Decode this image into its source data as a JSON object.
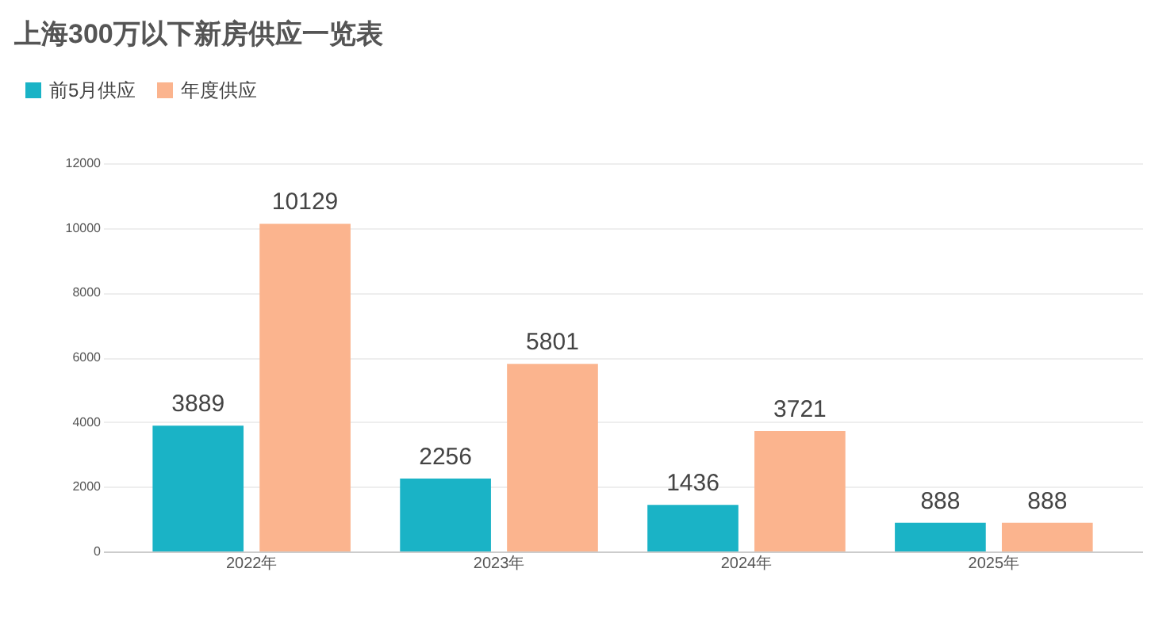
{
  "chart_data": {
    "type": "bar",
    "title": "上海300万以下新房供应一览表",
    "categories": [
      "2022年",
      "2023年",
      "2024年",
      "2025年"
    ],
    "series": [
      {
        "name": "前5月供应",
        "color": "#1ab3c6",
        "values": [
          3889,
          2256,
          1436,
          888
        ]
      },
      {
        "name": "年度供应",
        "color": "#fbb48e",
        "values": [
          10129,
          5801,
          3721,
          888
        ]
      }
    ],
    "ylim": [
      0,
      12000
    ],
    "yticks": [
      0,
      2000,
      4000,
      6000,
      8000,
      10000,
      12000
    ],
    "grid": "y",
    "legend": "top left",
    "data_labels": true
  }
}
